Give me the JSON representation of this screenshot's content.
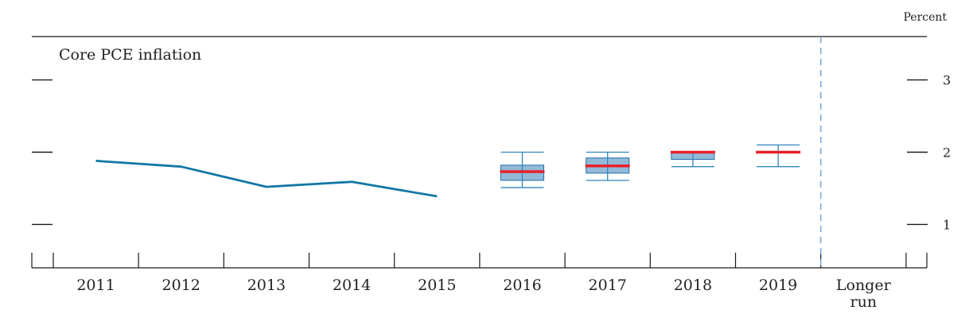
{
  "chart_data": {
    "type": "line",
    "title": "Core PCE inflation",
    "unit_label": "Percent",
    "categories": [
      "2011",
      "2012",
      "2013",
      "2014",
      "2015",
      "2016",
      "2017",
      "2018",
      "2019",
      "Longer run"
    ],
    "ylim": [
      0.4,
      3.6
    ],
    "yticks": [
      1,
      2,
      3
    ],
    "series": [
      {
        "values": [
          1.88,
          1.8,
          1.52,
          1.59,
          1.39,
          null,
          null,
          null,
          null,
          null
        ]
      }
    ],
    "projections": [
      {
        "category": "2016",
        "median": 1.73,
        "central_low": 1.61,
        "central_high": 1.82,
        "range_low": 1.51,
        "range_high": 2.0
      },
      {
        "category": "2017",
        "median": 1.81,
        "central_low": 1.71,
        "central_high": 1.92,
        "range_low": 1.61,
        "range_high": 2.0
      },
      {
        "category": "2018",
        "median": 2.0,
        "central_low": 1.9,
        "central_high": 2.0,
        "range_low": 1.8,
        "range_high": 2.0
      },
      {
        "category": "2019",
        "median": 2.0,
        "central_low": 2.0,
        "central_high": 2.0,
        "range_low": 1.8,
        "range_high": 2.1
      }
    ],
    "grid": false,
    "colors": {
      "history_line": "#1277a6",
      "central_fill": "#93b9d9",
      "box_edge": "#1f6fa8",
      "median": "#e8202a",
      "whisker": "#2f88c0",
      "divider": "#7aaad8",
      "axis": "#1a1a1a"
    }
  }
}
